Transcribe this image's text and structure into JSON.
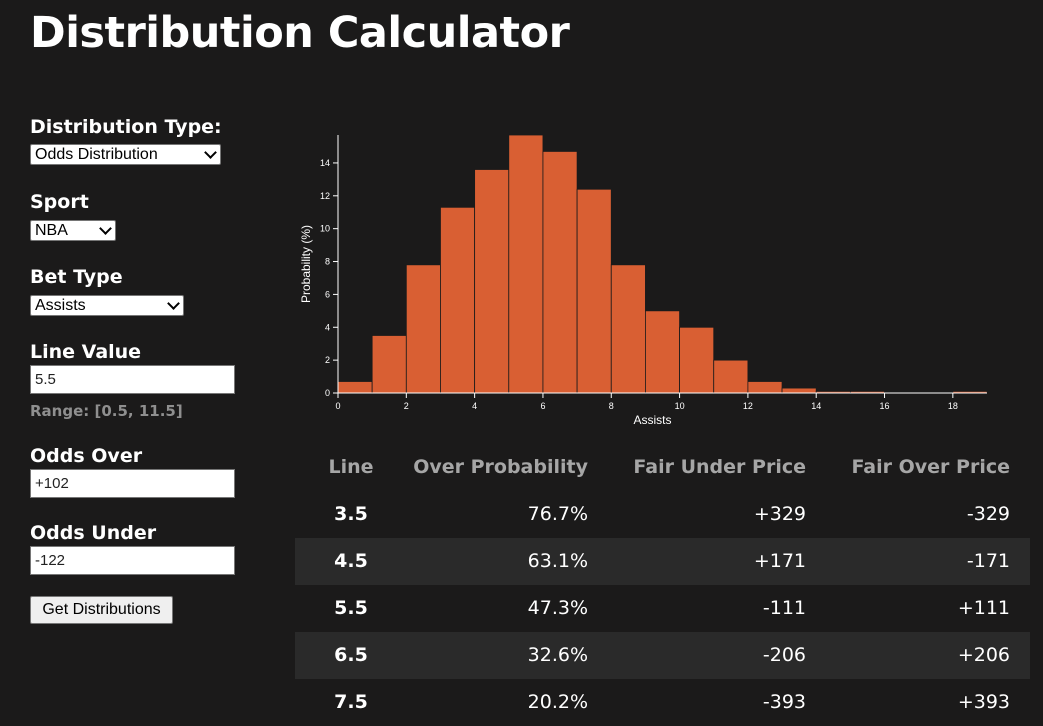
{
  "page": {
    "title": "Distribution Calculator"
  },
  "form": {
    "distribution_type_label": "Distribution Type:",
    "distribution_type_value": "Odds Distribution",
    "sport_label": "Sport",
    "sport_value": "NBA",
    "bet_type_label": "Bet Type",
    "bet_type_value": "Assists",
    "line_value_label": "Line Value",
    "line_value": "5.5",
    "range_note": "Range: [0.5, 11.5]",
    "odds_over_label": "Odds Over",
    "odds_over_value": "+102",
    "odds_under_label": "Odds Under",
    "odds_under_value": "-122",
    "submit_label": "Get Distributions"
  },
  "chart_data": {
    "type": "bar",
    "title": "",
    "xlabel": "Assists",
    "ylabel": "Probability (%)",
    "bar_color": "#d95f33",
    "bin_width": 1,
    "x": [
      0,
      1,
      2,
      3,
      4,
      5,
      6,
      7,
      8,
      9,
      10,
      11,
      12,
      13,
      14,
      15,
      16,
      17,
      18
    ],
    "values": [
      0.7,
      3.5,
      7.8,
      11.3,
      13.6,
      15.7,
      14.7,
      12.4,
      7.8,
      5.0,
      4.0,
      2.0,
      0.7,
      0.3,
      0.1,
      0.1,
      0.05,
      0.03,
      0.1
    ],
    "xlim": [
      0,
      19
    ],
    "ylim": [
      0,
      15.7
    ],
    "xticks": [
      "0",
      "2",
      "4",
      "6",
      "8",
      "10",
      "12",
      "14",
      "16",
      "18"
    ],
    "yticks": [
      "0",
      "2",
      "4",
      "6",
      "8",
      "10",
      "12",
      "14"
    ]
  },
  "table": {
    "headers": [
      "Line",
      "Over Probability",
      "Fair Under Price",
      "Fair Over Price"
    ],
    "rows": [
      {
        "line": "3.5",
        "over_probability": "76.7%",
        "fair_under": "+329",
        "fair_over": "-329"
      },
      {
        "line": "4.5",
        "over_probability": "63.1%",
        "fair_under": "+171",
        "fair_over": "-171"
      },
      {
        "line": "5.5",
        "over_probability": "47.3%",
        "fair_under": "-111",
        "fair_over": "+111"
      },
      {
        "line": "6.5",
        "over_probability": "32.6%",
        "fair_under": "-206",
        "fair_over": "+206"
      },
      {
        "line": "7.5",
        "over_probability": "20.2%",
        "fair_under": "-393",
        "fair_over": "+393"
      }
    ]
  }
}
